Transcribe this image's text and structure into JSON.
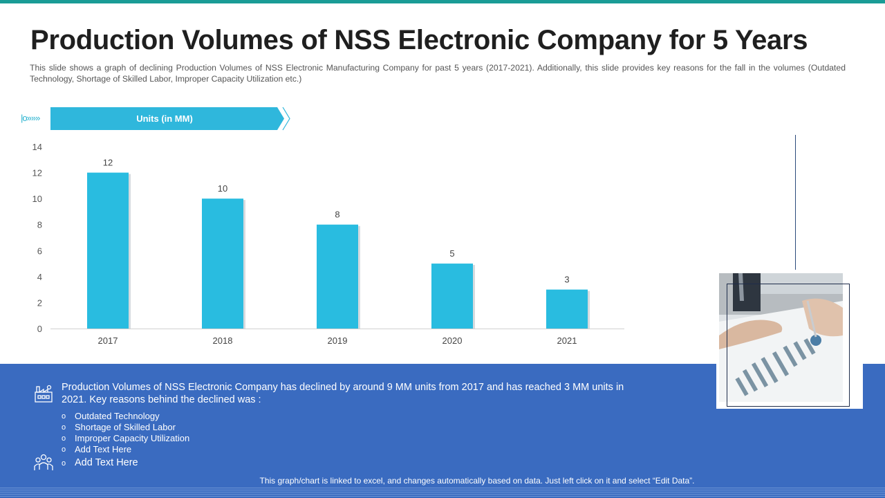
{
  "title": "Production Volumes of NSS Electronic Company for 5 Years",
  "subtitle": "This slide shows a graph of declining Production Volumes of NSS Electronic Manufacturing Company for past 5 years (2017-2021). Additionally, this slide provides key reasons for the fall in the volumes (Outdated Technology, Shortage of Skilled Labor, Improper Capacity Utilization etc.)",
  "units_banner": {
    "marker": "|o»»»",
    "label": "Units (in MM)"
  },
  "chart_data": {
    "type": "bar",
    "title": "",
    "categories": [
      "2017",
      "2018",
      "2019",
      "2020",
      "2021"
    ],
    "values": [
      12,
      10,
      8,
      5,
      3
    ],
    "data_labels": [
      "12",
      "10",
      "8",
      "5",
      "3"
    ],
    "xlabel": "",
    "ylabel": "Units (in MM)",
    "ylim": [
      0,
      14
    ],
    "yticks": [
      "0",
      "2",
      "4",
      "6",
      "8",
      "10",
      "12",
      "14"
    ],
    "grid": false,
    "bar_color": "#29bce0"
  },
  "summary": {
    "text": "Production Volumes of NSS Electronic Company has declined by around 9 MM units from 2017 and has reached 3 MM units in 2021. Key reasons behind the declined was :",
    "bullet_marker": "o",
    "bullets": [
      "Outdated Technology",
      "Shortage of Skilled Labor",
      "Improper Capacity Utilization",
      "Add Text Here"
    ],
    "extra_bullet": "Add Text Here"
  },
  "footer_note": "This graph/chart is linked to excel, and changes automatically based on data. Just left click on it and select “Edit Data”.",
  "colors": {
    "accent_teal": "#1a9c96",
    "bar": "#29bce0",
    "panel": "#3a6bc0",
    "text_dark": "#1f1f1f"
  }
}
